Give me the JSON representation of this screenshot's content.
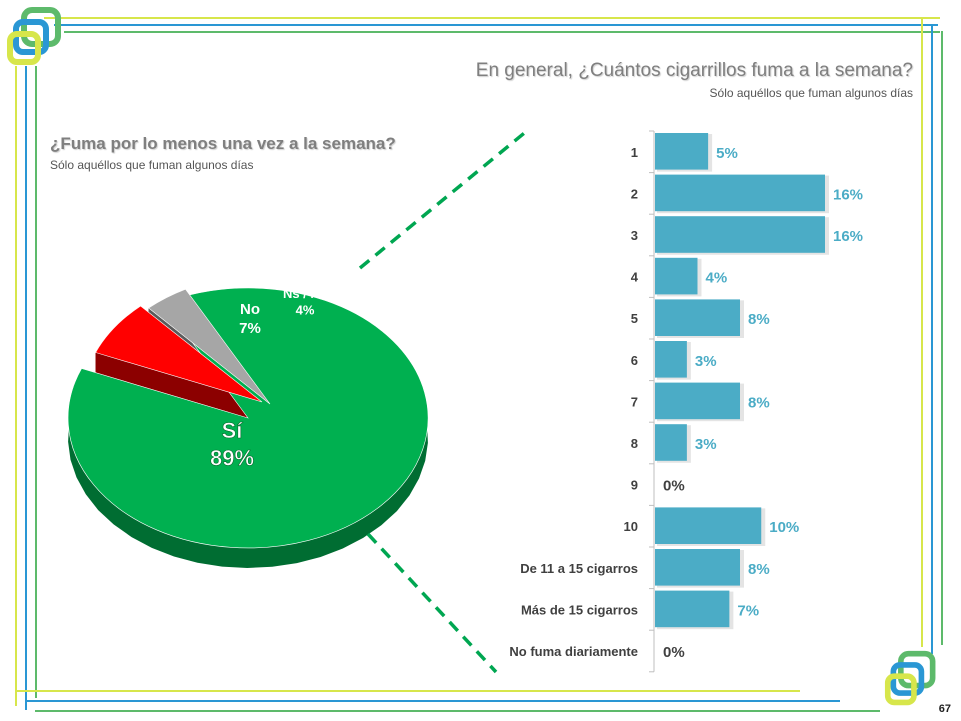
{
  "page": {
    "number": "67"
  },
  "colors": {
    "frame_yellow": "#d7e64b",
    "frame_blue": "#2a97d4",
    "frame_green": "#5dba6b",
    "bar": "#4bacc6",
    "bar_label": "#4bacc6",
    "pie_si": "#00b050",
    "pie_no": "#ff0000",
    "pie_nsnc": "#a6a6a6",
    "connector": "#00a651"
  },
  "icons": {
    "logo_top_left": "logo-squares-icon",
    "logo_bottom_right": "logo-squares-icon"
  },
  "chart_data": [
    {
      "type": "pie",
      "title": "¿Fuma por lo menos una vez a la semana?",
      "subtitle": "Sólo aquéllos que fuman algunos días",
      "slices": [
        {
          "label": "Sí",
          "value": 89,
          "value_label": "89%"
        },
        {
          "label": "No",
          "value": 7,
          "value_label": "7%"
        },
        {
          "label": "Ns / Nc",
          "value": 4,
          "value_label": "4%"
        }
      ],
      "style": "3d-exploded"
    },
    {
      "type": "bar",
      "orientation": "horizontal",
      "title": "En general, ¿Cuántos cigarrillos fuma a la semana?",
      "subtitle": "Sólo aquéllos que fuman algunos días",
      "categories": [
        "1",
        "2",
        "3",
        "4",
        "5",
        "6",
        "7",
        "8",
        "9",
        "10",
        "De 11 a 15 cigarros",
        "Más de 15 cigarros",
        "No fuma diariamente"
      ],
      "values": [
        5,
        16,
        16,
        4,
        8,
        3,
        8,
        3,
        0,
        10,
        8,
        7,
        0
      ],
      "value_labels": [
        "5%",
        "16%",
        "16%",
        "4%",
        "8%",
        "3%",
        "8%",
        "3%",
        "0%",
        "10%",
        "8%",
        "7%",
        "0%"
      ],
      "xlim": [
        0,
        16
      ],
      "grid": false,
      "legend": "none"
    }
  ]
}
